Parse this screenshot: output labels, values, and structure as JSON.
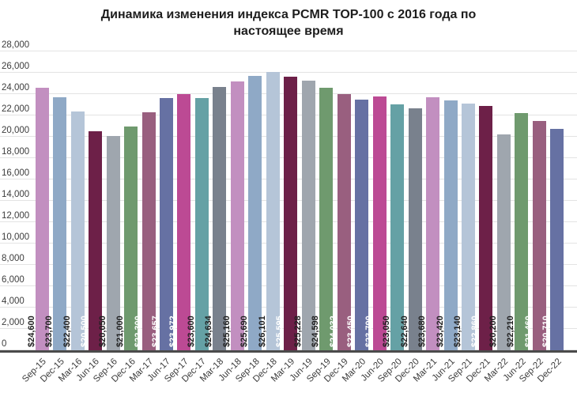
{
  "chart": {
    "title_lines": [
      "Динамика изменения индекса PCMR TOP-100 с 2016 года по",
      "настоящее время"
    ]
  },
  "chart_data": {
    "type": "bar",
    "title": "Динамика изменения индекса PCMR TOP-100 с 2016 года по настоящее время",
    "xlabel": "",
    "ylabel": "",
    "ylim": [
      0,
      28000
    ],
    "ytick_step": 2000,
    "y_tick_labels": [
      "0",
      "2,000",
      "4,000",
      "6,000",
      "8,000",
      "10,000",
      "12,000",
      "14,000",
      "16,000",
      "18,000",
      "20,000",
      "22,000",
      "24,000",
      "26,000",
      "28,000"
    ],
    "grid": true,
    "legend": false,
    "value_prefix": "$",
    "categories": [
      "Sep-15",
      "Dec-15",
      "Mar-16",
      "Jun-16",
      "Sep-16",
      "Dec-16",
      "Mar-17",
      "Jun-17",
      "Sep-17",
      "Dec-17",
      "Mar-18",
      "Jun-18",
      "Sep-18",
      "Dec-18",
      "Mar-19",
      "Jun-19",
      "Sep-19",
      "Dec-19",
      "Mar-20",
      "Jun-20",
      "Sep-20",
      "Dec-20",
      "Mar-21",
      "Jun-21",
      "Sep-21",
      "Dec-21",
      "Mar-22",
      "Jun-22",
      "Sep-22",
      "Dec-22"
    ],
    "values": [
      24600,
      23700,
      22400,
      20500,
      20050,
      21000,
      22300,
      23657,
      23972,
      23600,
      24634,
      25160,
      25690,
      26101,
      25595,
      25228,
      24598,
      24032,
      23450,
      23790,
      23050,
      22640,
      23680,
      23420,
      23140,
      22860,
      20200,
      22210,
      21460,
      20710
    ],
    "bar_labels": [
      "$24,600",
      "$23,700",
      "$22,400",
      "$20,500",
      "$20,050",
      "$21,000",
      "$22,300",
      "$23,657",
      "$23,972",
      "$23,600",
      "$24,634",
      "$25,160",
      "$25,690",
      "$26,101",
      "$25,595",
      "$25,228",
      "$24,598",
      "$24,032",
      "$23,450",
      "$23,790",
      "$23,050",
      "$22,640",
      "$23,680",
      "$23,420",
      "$23,140",
      "$22,860",
      "$20,200",
      "$22,210",
      "$21,460",
      "$20,710"
    ],
    "palette": [
      {
        "name": "pink-orchid",
        "hex": "#c28fc0",
        "text": "#1f1f1f"
      },
      {
        "name": "steel-blue",
        "hex": "#8fa9c6",
        "text": "#1f1f1f"
      },
      {
        "name": "light-blue",
        "hex": "#b5c5d8",
        "text": "#1f1f1f"
      },
      {
        "name": "dark-maroon",
        "hex": "#6d2048",
        "text": "#ffffff"
      },
      {
        "name": "gray",
        "hex": "#9fa6ae",
        "text": "#1f1f1f"
      },
      {
        "name": "green",
        "hex": "#6f9a6e",
        "text": "#1f1f1f"
      },
      {
        "name": "mauve",
        "hex": "#995f7f",
        "text": "#ffffff"
      },
      {
        "name": "blue-purple",
        "hex": "#6671a3",
        "text": "#ffffff"
      },
      {
        "name": "magenta",
        "hex": "#bc4a94",
        "text": "#ffffff"
      },
      {
        "name": "teal",
        "hex": "#65a1a5",
        "text": "#1f1f1f"
      },
      {
        "name": "slate-gray",
        "hex": "#79818d",
        "text": "#1f1f1f"
      }
    ],
    "grid_color": "#e3e3e3",
    "axis_color": "#4b4b4b"
  }
}
